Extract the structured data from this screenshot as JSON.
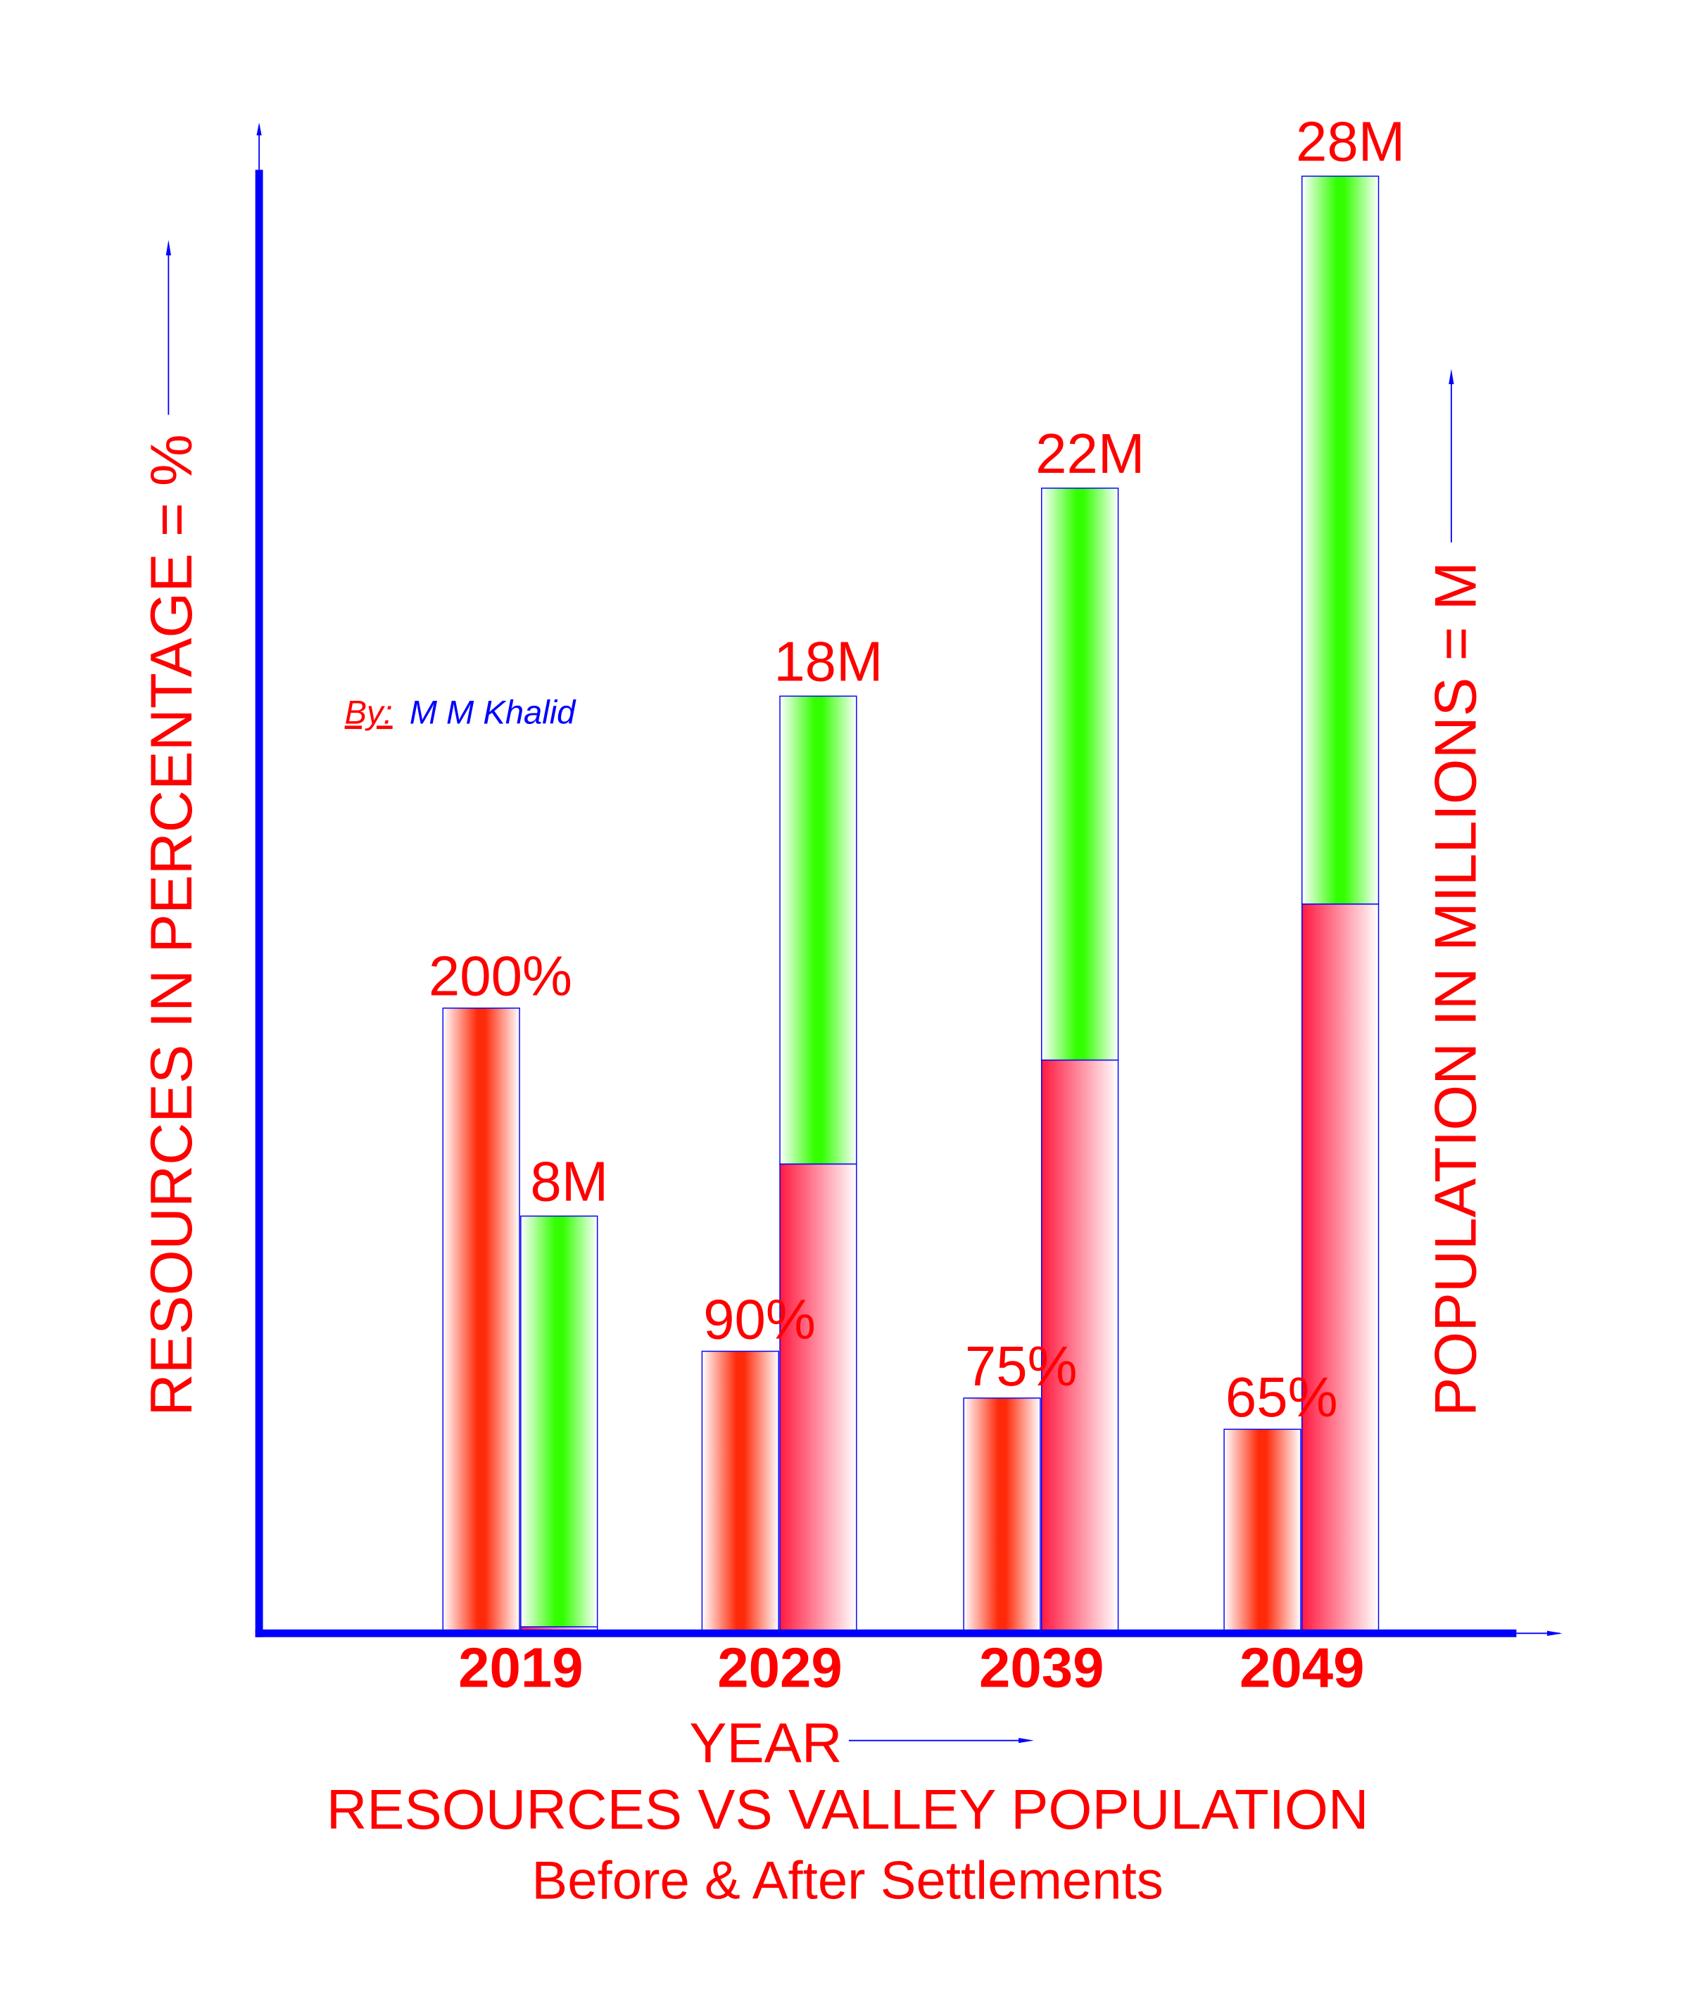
{
  "chart_data": {
    "type": "bar",
    "title": "RESOURCES VS VALLEY POPULATION",
    "subtitle": "Before & After Settlements",
    "xlabel": "YEAR",
    "ylabel_left": "RESOURCES IN PERCENTAGE = %",
    "ylabel_right": "POPULATION IN MILLIONS = M",
    "credit_prefix": "By:",
    "credit_name": "M M Khalid",
    "categories": [
      "2019",
      "2029",
      "2039",
      "2049"
    ],
    "series": [
      {
        "key": "resources",
        "unit": "%",
        "values": [
          200,
          90,
          75,
          65
        ],
        "labels": [
          "200%",
          "90%",
          "75%",
          "65%"
        ]
      },
      {
        "key": "population",
        "unit": "M",
        "values": [
          8,
          18,
          22,
          28
        ],
        "labels": [
          "8M",
          "18M",
          "22M",
          "28M"
        ],
        "red_segment": [
          0.1,
          9,
          11,
          14
        ]
      }
    ],
    "grid": false,
    "legend": "none",
    "colors": {
      "axis": "#0000ff",
      "text": "#ff0000",
      "resource_bar": "#ff2a0a",
      "population_green": "#33ff00",
      "population_red": "#ff1a40",
      "credit": "#0000ff"
    }
  }
}
